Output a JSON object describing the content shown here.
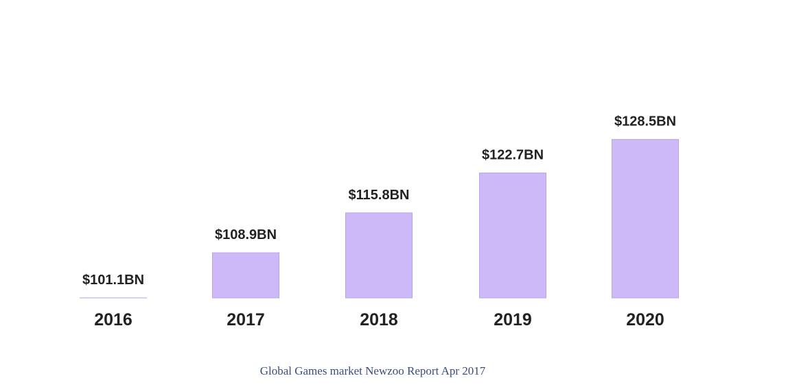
{
  "chart_data": {
    "type": "bar",
    "categories": [
      "2016",
      "2017",
      "2018",
      "2019",
      "2020"
    ],
    "values": [
      101.1,
      108.9,
      115.8,
      122.7,
      128.5
    ],
    "value_labels": [
      "$101.1BN",
      "$108.9BN",
      "$115.8BN",
      "$122.7BN",
      "$128.5BN"
    ],
    "bar_color": "#cdb9f7",
    "title": "",
    "xlabel": "",
    "ylabel": "",
    "grid": false,
    "legend": "none",
    "show_value_axis": false
  },
  "caption": "Global Games market Newzoo Report Apr 2017"
}
